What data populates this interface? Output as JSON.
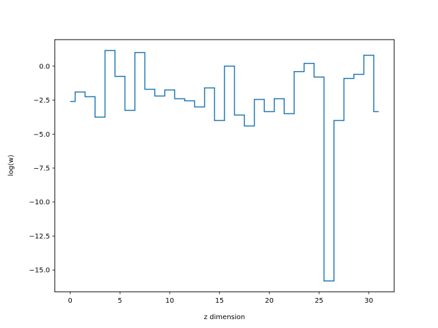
{
  "chart_data": {
    "type": "line",
    "drawstyle": "steps-mid",
    "title": "",
    "xlabel": "z dimension",
    "ylabel": "log(w)",
    "xlim": [
      -1.55,
      32.55
    ],
    "ylim": [
      -16.6,
      1.95
    ],
    "grid": false,
    "legend": false,
    "xticks": [
      {
        "value": 0,
        "label": "0"
      },
      {
        "value": 5,
        "label": "5"
      },
      {
        "value": 10,
        "label": "10"
      },
      {
        "value": 15,
        "label": "15"
      },
      {
        "value": 20,
        "label": "20"
      },
      {
        "value": 25,
        "label": "25"
      },
      {
        "value": 30,
        "label": "30"
      }
    ],
    "yticks": [
      {
        "value": 0,
        "label": "0.0"
      },
      {
        "value": -2.5,
        "label": "−2.5"
      },
      {
        "value": -5,
        "label": "−5.0"
      },
      {
        "value": -7.5,
        "label": "−7.5"
      },
      {
        "value": -10,
        "label": "−10.0"
      },
      {
        "value": -12.5,
        "label": "−12.5"
      },
      {
        "value": -15,
        "label": "−15.0"
      }
    ],
    "series": [
      {
        "color": "#1f77b4",
        "x": [
          0,
          1,
          2,
          3,
          4,
          5,
          6,
          7,
          8,
          9,
          10,
          11,
          12,
          13,
          14,
          15,
          16,
          17,
          18,
          19,
          20,
          21,
          22,
          23,
          24,
          25,
          26,
          27,
          28,
          29,
          30,
          31
        ],
        "y": [
          -2.6,
          -1.9,
          -2.25,
          -3.75,
          1.15,
          -0.75,
          -3.25,
          1.0,
          -1.7,
          -2.2,
          -1.75,
          -2.4,
          -2.55,
          -3.0,
          -1.6,
          -4.0,
          0.0,
          -3.6,
          -4.4,
          -2.45,
          -3.35,
          -2.4,
          -3.5,
          -0.4,
          0.2,
          -0.8,
          -15.8,
          -4.0,
          -0.9,
          -0.6,
          0.8,
          -3.35
        ]
      }
    ]
  }
}
